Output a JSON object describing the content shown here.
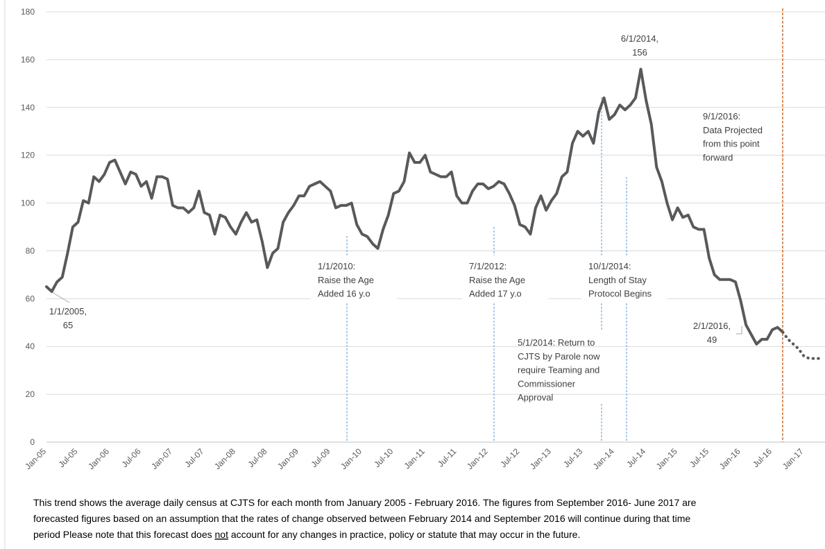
{
  "chart_data": {
    "type": "line",
    "categories": [
      "Jan-05",
      null,
      null,
      null,
      null,
      null,
      "Jul-05",
      null,
      null,
      null,
      null,
      null,
      "Jan-06",
      null,
      null,
      null,
      null,
      null,
      "Jul-06",
      null,
      null,
      null,
      null,
      null,
      "Jan-07",
      null,
      null,
      null,
      null,
      null,
      "Jul-07",
      null,
      null,
      null,
      null,
      null,
      "Jan-08",
      null,
      null,
      null,
      null,
      null,
      "Jul-08",
      null,
      null,
      null,
      null,
      null,
      "Jan-09",
      null,
      null,
      null,
      null,
      null,
      "Jul-09",
      null,
      null,
      null,
      null,
      null,
      "Jan-10",
      null,
      null,
      null,
      null,
      null,
      "Jul-10",
      null,
      null,
      null,
      null,
      null,
      "Jan-11",
      null,
      null,
      null,
      null,
      null,
      "Jul-11",
      null,
      null,
      null,
      null,
      null,
      "Jan-12",
      null,
      null,
      null,
      null,
      null,
      "Jul-12",
      null,
      null,
      null,
      null,
      null,
      "Jan-13",
      null,
      null,
      null,
      null,
      null,
      "Jul-13",
      null,
      null,
      null,
      null,
      null,
      "Jan-14",
      null,
      null,
      null,
      null,
      null,
      "Jul-14",
      null,
      null,
      null,
      null,
      null,
      "Jan-15",
      null,
      null,
      null,
      null,
      null,
      "Jul-15",
      null,
      null,
      null,
      null,
      null,
      "Jan-16",
      null,
      null,
      null,
      null,
      null,
      "Jul-16",
      null,
      null,
      null,
      null,
      null,
      "Jan-17",
      null,
      null,
      null
    ],
    "series": [
      {
        "color": "#595959",
        "style": "solid",
        "values": [
          65,
          63,
          67,
          69,
          79,
          90,
          92,
          101,
          100,
          111,
          109,
          112,
          117,
          118,
          113,
          108,
          113,
          112,
          107,
          109,
          102,
          111,
          111,
          110,
          99,
          98,
          98,
          96,
          98,
          105,
          96,
          95,
          87,
          95,
          94,
          90,
          87,
          92,
          96,
          92,
          93,
          84,
          73,
          79,
          81,
          92,
          96,
          99,
          103,
          103,
          107,
          108,
          109,
          107,
          105,
          98,
          99,
          99,
          100,
          91,
          87,
          86,
          83,
          81,
          89,
          95,
          104,
          105,
          109,
          121,
          117,
          117,
          120,
          113,
          112,
          111,
          111,
          113,
          103,
          100,
          100,
          105,
          108,
          108,
          106,
          107,
          109,
          108,
          104,
          99,
          91,
          90,
          87,
          98,
          103,
          97,
          101,
          104,
          111,
          113,
          125,
          130,
          128,
          130,
          125,
          138,
          144,
          135,
          137,
          141,
          139,
          141,
          144,
          156,
          143,
          133,
          115,
          109,
          100,
          93,
          98,
          94,
          95,
          90,
          89,
          89,
          77,
          70,
          68,
          68,
          68,
          67,
          59,
          49,
          45,
          41,
          43,
          43,
          47,
          48,
          46,
          null,
          null,
          null,
          null,
          null,
          null,
          null
        ]
      },
      {
        "color": "#595959",
        "style": "dotted",
        "values": [
          null,
          null,
          null,
          null,
          null,
          null,
          null,
          null,
          null,
          null,
          null,
          null,
          null,
          null,
          null,
          null,
          null,
          null,
          null,
          null,
          null,
          null,
          null,
          null,
          null,
          null,
          null,
          null,
          null,
          null,
          null,
          null,
          null,
          null,
          null,
          null,
          null,
          null,
          null,
          null,
          null,
          null,
          null,
          null,
          null,
          null,
          null,
          null,
          null,
          null,
          null,
          null,
          null,
          null,
          null,
          null,
          null,
          null,
          null,
          null,
          null,
          null,
          null,
          null,
          null,
          null,
          null,
          null,
          null,
          null,
          null,
          null,
          null,
          null,
          null,
          null,
          null,
          null,
          null,
          null,
          null,
          null,
          null,
          null,
          null,
          null,
          null,
          null,
          null,
          null,
          null,
          null,
          null,
          null,
          null,
          null,
          null,
          null,
          null,
          null,
          null,
          null,
          null,
          null,
          null,
          null,
          null,
          null,
          null,
          null,
          null,
          null,
          null,
          null,
          null,
          null,
          null,
          null,
          null,
          null,
          null,
          null,
          null,
          null,
          null,
          null,
          null,
          null,
          null,
          null,
          null,
          null,
          null,
          null,
          null,
          null,
          null,
          null,
          null,
          null,
          46,
          43,
          41,
          39,
          36,
          35,
          35,
          35
        ]
      }
    ],
    "ylim": [
      0,
      180
    ],
    "yticks": [
      0,
      20,
      40,
      60,
      80,
      100,
      120,
      140,
      160,
      180
    ],
    "grid": true,
    "annotations": [
      {
        "lines": [
          "1/1/2005,",
          "65"
        ]
      },
      {
        "lines": [
          "6/1/2014,",
          "156"
        ]
      },
      {
        "lines": [
          "2/1/2016,",
          "49"
        ]
      },
      {
        "lines": [
          "1/1/2010:",
          "Raise the Age",
          "Added 16 y.o"
        ]
      },
      {
        "lines": [
          "7/1/2012:",
          "Raise the Age",
          "Added 17 y.o"
        ]
      },
      {
        "lines": [
          "10/1/2014:",
          "Length of Stay",
          "Protocol Begins"
        ]
      },
      {
        "lines": [
          "5/1/2014:  Return to",
          "CJTS by Parole now",
          "require Teaming and",
          "Commissioner",
          "Approval"
        ]
      },
      {
        "lines": [
          "9/1/2016:",
          "Data Projected",
          "from this point",
          "forward"
        ]
      }
    ],
    "footer": {
      "line1": "This trend shows the average daily census at CJTS for each month from January 2005 - February 2016.  The figures from September 2016- June 2017 are",
      "line2": "forecasted figures based on an assumption that the rates of change observed between February 2014 and September 2016 will continue during that time",
      "line3": [
        "period  Please note that this forecast does ",
        "not",
        " account for any changes in practice, policy or statute that may occur in the future."
      ]
    }
  }
}
